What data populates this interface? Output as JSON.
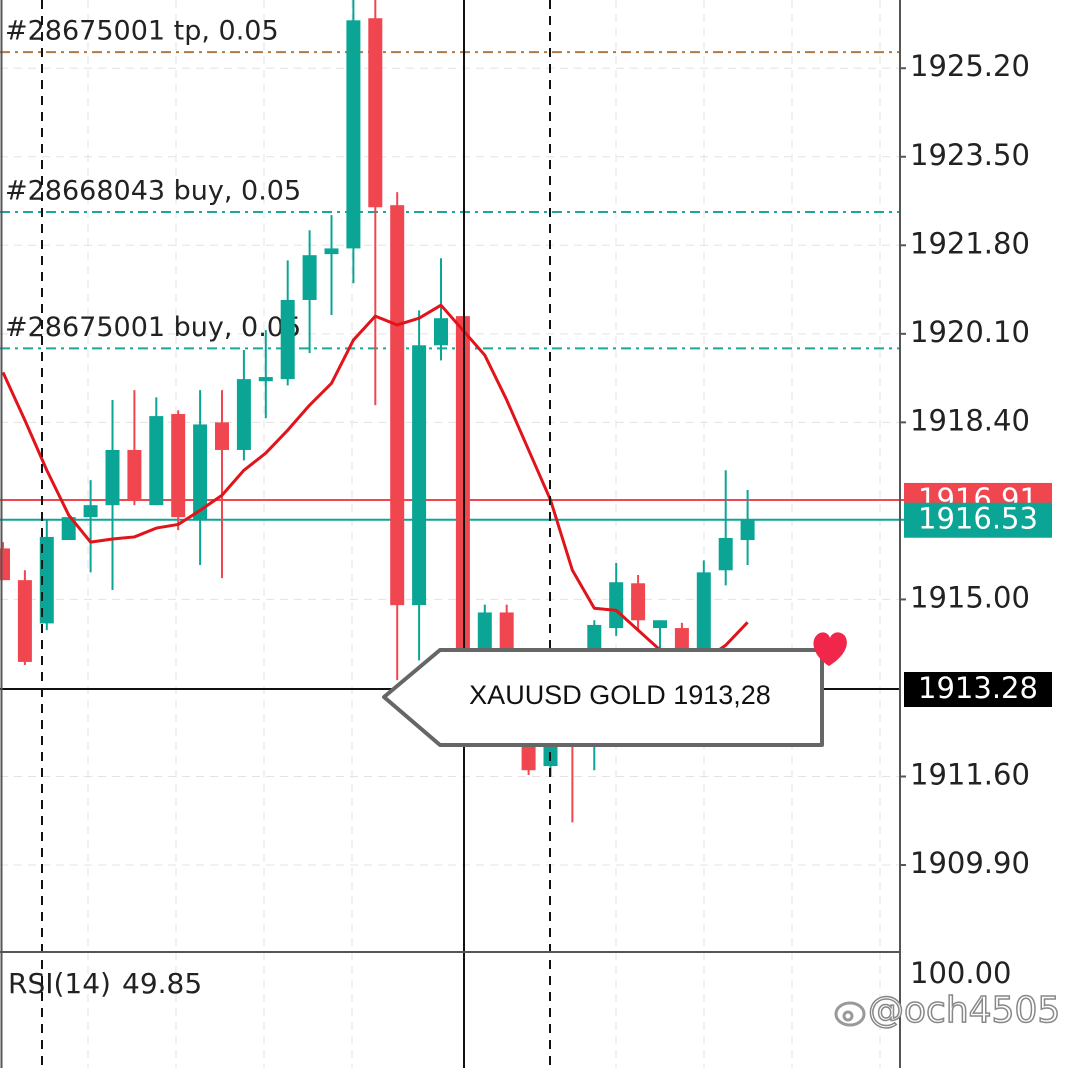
{
  "chart_data": {
    "type": "candlestick",
    "ylim": [
      1908.23,
      1926.51
    ],
    "yticks": [
      {
        "value": 1925.2,
        "label": "1925.20"
      },
      {
        "value": 1923.5,
        "label": "1923.50"
      },
      {
        "value": 1921.8,
        "label": "1921.80"
      },
      {
        "value": 1920.1,
        "label": "1920.10"
      },
      {
        "value": 1918.4,
        "label": "1918.40"
      },
      {
        "value": 1915.0,
        "label": "1915.00"
      },
      {
        "value": 1911.6,
        "label": "1911.60"
      },
      {
        "value": 1909.9,
        "label": "1909.90"
      }
    ],
    "grid": true,
    "up_color": "#0ba596",
    "down_color": "#f0464f",
    "open": [
      1915.98,
      1915.37,
      1914.54,
      1916.14,
      1916.58,
      1916.81,
      1917.87,
      1916.81,
      1918.56,
      1916.52,
      1918.4,
      1917.87,
      1919.19,
      1919.23,
      1920.75,
      1921.63,
      1921.74,
      1926.16,
      1922.57,
      1914.89,
      1919.88,
      1920.44,
      1913.5,
      1914.75,
      1912.4,
      1911.8,
      1912.5,
      1912.3,
      1914.45,
      1915.31,
      1914.45,
      1914.45,
      1914.03,
      1915.56,
      1916.14
    ],
    "high": [
      1916.1,
      1915.56,
      1916.52,
      1916.58,
      1917.29,
      1918.83,
      1919.02,
      1918.88,
      1918.63,
      1919.02,
      1919.02,
      1919.79,
      1920.17,
      1921.51,
      1922.09,
      1922.38,
      1926.51,
      1926.51,
      1922.82,
      1920.55,
      1921.55,
      1920.44,
      1914.9,
      1914.9,
      1912.6,
      1912.6,
      1912.8,
      1914.6,
      1915.7,
      1915.47,
      1914.6,
      1914.55,
      1915.75,
      1917.48,
      1917.1
    ],
    "low": [
      1915.37,
      1913.74,
      1914.41,
      1916.14,
      1915.52,
      1915.18,
      1916.81,
      1916.81,
      1916.33,
      1915.66,
      1915.41,
      1917.67,
      1918.48,
      1919.11,
      1919.73,
      1920.46,
      1921.07,
      1918.73,
      1913.45,
      1913.83,
      1919.59,
      1912.5,
      1913.2,
      1912.6,
      1911.63,
      1911.6,
      1910.72,
      1911.72,
      1914.3,
      1914.41,
      1914.0,
      1913.8,
      1913.9,
      1915.27,
      1915.66
    ],
    "close": [
      1915.37,
      1913.8,
      1916.2,
      1916.58,
      1916.81,
      1917.87,
      1916.91,
      1918.52,
      1916.58,
      1918.36,
      1917.87,
      1919.23,
      1919.27,
      1920.75,
      1921.61,
      1921.74,
      1926.12,
      1922.53,
      1914.89,
      1919.88,
      1920.4,
      1913.07,
      1914.75,
      1912.9,
      1911.72,
      1912.4,
      1912.2,
      1914.51,
      1915.33,
      1914.6,
      1914.6,
      1914.03,
      1915.52,
      1916.18,
      1916.53
    ],
    "ma": {
      "color": "#e0141a",
      "values": [
        1919.36,
        1918.44,
        1917.48,
        1916.62,
        1916.1,
        1916.16,
        1916.2,
        1916.37,
        1916.44,
        1916.71,
        1917.0,
        1917.48,
        1917.81,
        1918.25,
        1918.73,
        1919.15,
        1919.98,
        1920.44,
        1920.27,
        1920.4,
        1920.65,
        1920.17,
        1919.69,
        1918.83,
        1917.87,
        1916.91,
        1915.56,
        1914.83,
        1914.79,
        1914.41,
        1914.03,
        1913.83,
        1913.83,
        1914.12,
        1914.56
      ]
    },
    "order_lines": [
      {
        "label": "#28675001 tp, 0.05",
        "value": 1925.51,
        "color": "#b07a48"
      },
      {
        "label": "#28668043 buy, 0.05",
        "value": 1922.44,
        "color": "#1aa89a"
      },
      {
        "label": "#28675001 buy, 0.05",
        "value": 1919.82,
        "color": "#1aa89a"
      }
    ],
    "ask": {
      "value": 1916.91,
      "color": "#f0464f"
    },
    "bid": {
      "value": 1916.53,
      "color": "#0ba596"
    },
    "crosshair": {
      "value": 1913.28
    },
    "callout": "XAUUSD GOLD 1913,28",
    "rsi": {
      "name": "RSI(14)",
      "value": 49.85,
      "axis_top": {
        "value": 100,
        "label": "100.00"
      }
    },
    "watermark": "@och4505"
  }
}
